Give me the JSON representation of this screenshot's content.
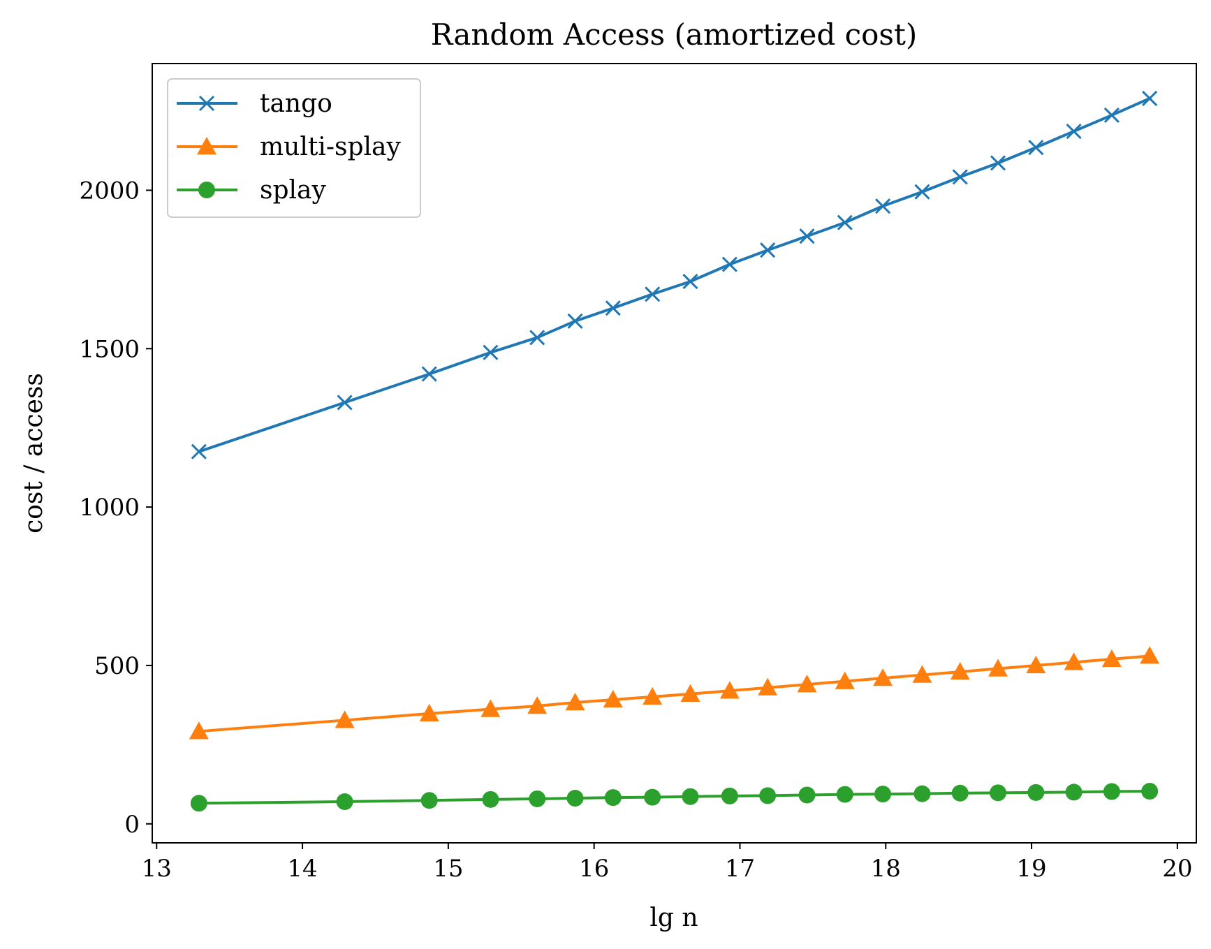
{
  "chart_data": {
    "type": "line",
    "title": "Random Access (amortized cost)",
    "xlabel": "lg n",
    "ylabel": "cost / access",
    "xlim": [
      12.97,
      20.13
    ],
    "ylim": [
      -60,
      2400
    ],
    "xticks": [
      13,
      14,
      15,
      16,
      17,
      18,
      19,
      20
    ],
    "yticks": [
      0,
      500,
      1000,
      1500,
      2000
    ],
    "legend_position": "top-left",
    "x": [
      13.29,
      14.29,
      14.87,
      15.29,
      15.61,
      15.87,
      16.13,
      16.4,
      16.66,
      16.93,
      17.19,
      17.46,
      17.72,
      17.98,
      18.25,
      18.51,
      18.77,
      19.03,
      19.29,
      19.55,
      19.81
    ],
    "series": [
      {
        "name": "tango",
        "color": "#1f77b4",
        "marker": "x",
        "values": [
          1175,
          1330,
          1420,
          1488,
          1535,
          1587,
          1628,
          1672,
          1712,
          1766,
          1811,
          1855,
          1898,
          1950,
          1995,
          2042,
          2086,
          2135,
          2186,
          2237,
          2290
        ]
      },
      {
        "name": "multi-splay",
        "color": "#ff7f0e",
        "marker": "triangle",
        "values": [
          292,
          327,
          348,
          362,
          372,
          383,
          392,
          401,
          410,
          420,
          430,
          440,
          450,
          460,
          470,
          480,
          490,
          500,
          510,
          520,
          530
        ]
      },
      {
        "name": "splay",
        "color": "#2ca02c",
        "marker": "circle",
        "values": [
          65,
          70,
          74,
          77,
          79,
          81,
          83,
          84,
          86,
          88,
          89,
          91,
          93,
          94,
          95,
          97,
          98,
          99,
          100,
          102,
          103
        ]
      }
    ]
  }
}
